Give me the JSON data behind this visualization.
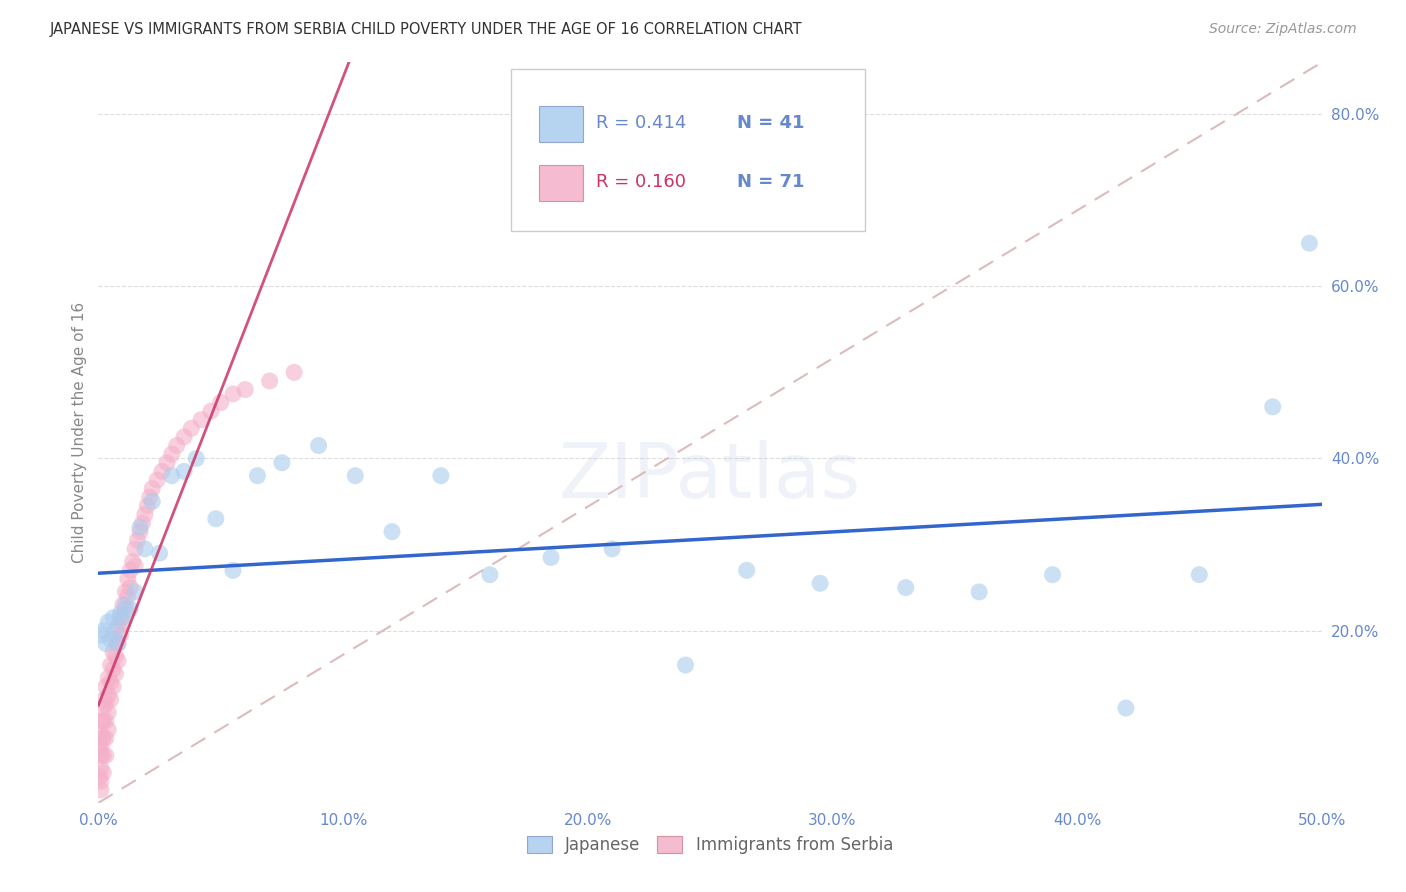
{
  "title": "JAPANESE VS IMMIGRANTS FROM SERBIA CHILD POVERTY UNDER THE AGE OF 16 CORRELATION CHART",
  "source": "Source: ZipAtlas.com",
  "ylabel": "Child Poverty Under the Age of 16",
  "xlim": [
    0.0,
    0.5
  ],
  "ylim": [
    0.0,
    0.86
  ],
  "xtick_vals": [
    0.0,
    0.1,
    0.2,
    0.3,
    0.4,
    0.5
  ],
  "xtick_labels": [
    "0.0%",
    "10.0%",
    "20.0%",
    "30.0%",
    "40.0%",
    "50.0%"
  ],
  "ytick_vals": [
    0.2,
    0.4,
    0.6,
    0.8
  ],
  "ytick_labels": [
    "20.0%",
    "40.0%",
    "60.0%",
    "80.0%"
  ],
  "bg_color": "#ffffff",
  "grid_color": "#dddddd",
  "title_color": "#333333",
  "axis_tick_color": "#6688cc",
  "japanese_scatter_color": "#aaccee",
  "serbian_scatter_color": "#f4b0c8",
  "japanese_line_color": "#3366cc",
  "serbian_line_color": "#cc3366",
  "diagonal_color": "#ddbbbb",
  "watermark": "ZIPatlas",
  "legend_R_jp": "R = 0.414",
  "legend_N_jp": "N = 41",
  "legend_R_sr": "R = 0.160",
  "legend_N_sr": "N = 71",
  "jp_x": [
    0.001,
    0.002,
    0.003,
    0.004,
    0.005,
    0.006,
    0.007,
    0.008,
    0.009,
    0.01,
    0.011,
    0.013,
    0.015,
    0.017,
    0.019,
    0.022,
    0.025,
    0.03,
    0.035,
    0.04,
    0.048,
    0.055,
    0.065,
    0.075,
    0.09,
    0.105,
    0.12,
    0.14,
    0.16,
    0.185,
    0.21,
    0.24,
    0.265,
    0.295,
    0.33,
    0.36,
    0.39,
    0.42,
    0.45,
    0.48,
    0.495
  ],
  "jp_y": [
    0.195,
    0.2,
    0.185,
    0.21,
    0.19,
    0.215,
    0.2,
    0.185,
    0.22,
    0.215,
    0.23,
    0.225,
    0.245,
    0.32,
    0.295,
    0.35,
    0.29,
    0.38,
    0.385,
    0.4,
    0.33,
    0.27,
    0.38,
    0.395,
    0.415,
    0.38,
    0.315,
    0.38,
    0.265,
    0.285,
    0.295,
    0.16,
    0.27,
    0.255,
    0.25,
    0.245,
    0.265,
    0.11,
    0.265,
    0.46,
    0.65
  ],
  "sr_x": [
    0.0005,
    0.0005,
    0.001,
    0.001,
    0.001,
    0.001,
    0.001,
    0.001,
    0.0015,
    0.0015,
    0.002,
    0.002,
    0.002,
    0.002,
    0.002,
    0.0025,
    0.003,
    0.003,
    0.003,
    0.003,
    0.003,
    0.004,
    0.004,
    0.004,
    0.004,
    0.005,
    0.005,
    0.005,
    0.006,
    0.006,
    0.006,
    0.007,
    0.007,
    0.007,
    0.008,
    0.008,
    0.008,
    0.009,
    0.009,
    0.01,
    0.01,
    0.011,
    0.011,
    0.012,
    0.012,
    0.013,
    0.013,
    0.014,
    0.015,
    0.015,
    0.016,
    0.017,
    0.018,
    0.019,
    0.02,
    0.021,
    0.022,
    0.024,
    0.026,
    0.028,
    0.03,
    0.032,
    0.035,
    0.038,
    0.042,
    0.046,
    0.05,
    0.055,
    0.06,
    0.07,
    0.08
  ],
  "sr_y": [
    0.06,
    0.03,
    0.08,
    0.065,
    0.055,
    0.04,
    0.025,
    0.015,
    0.095,
    0.075,
    0.11,
    0.095,
    0.075,
    0.055,
    0.035,
    0.12,
    0.135,
    0.115,
    0.095,
    0.075,
    0.055,
    0.145,
    0.125,
    0.105,
    0.085,
    0.16,
    0.14,
    0.12,
    0.175,
    0.155,
    0.135,
    0.19,
    0.17,
    0.15,
    0.205,
    0.185,
    0.165,
    0.215,
    0.195,
    0.23,
    0.21,
    0.245,
    0.225,
    0.26,
    0.24,
    0.27,
    0.25,
    0.28,
    0.295,
    0.275,
    0.305,
    0.315,
    0.325,
    0.335,
    0.345,
    0.355,
    0.365,
    0.375,
    0.385,
    0.395,
    0.405,
    0.415,
    0.425,
    0.435,
    0.445,
    0.455,
    0.465,
    0.475,
    0.48,
    0.49,
    0.5
  ],
  "title_fontsize": 10.5,
  "label_fontsize": 11,
  "tick_fontsize": 11,
  "legend_fontsize": 13,
  "source_fontsize": 10,
  "marker_size": 150,
  "marker_alpha": 0.6
}
